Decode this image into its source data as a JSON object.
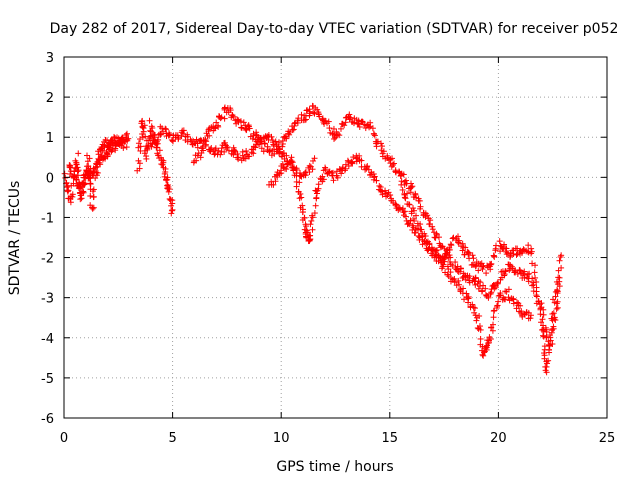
{
  "chart_data": {
    "type": "scatter",
    "title": "Day 282 of 2017, Sidereal Day-to-day VTEC variation (SDTVAR) for receiver p052",
    "xlabel": "GPS time / hours",
    "ylabel": "SDTVAR / TECUs",
    "xlim": [
      0,
      25
    ],
    "ylim": [
      -6,
      3
    ],
    "xticks": [
      0,
      5,
      10,
      15,
      20,
      25
    ],
    "yticks": [
      -6,
      -5,
      -4,
      -3,
      -2,
      -1,
      0,
      1,
      2,
      3
    ],
    "grid": true,
    "marker": "+",
    "series": [
      {
        "name": "SDTVAR",
        "color": "#ff0000",
        "tracks": [
          [
            [
              0.1,
              0.0
            ],
            [
              0.3,
              -0.6
            ],
            [
              0.6,
              0.5
            ],
            [
              0.8,
              -0.5
            ],
            [
              1.1,
              0.5
            ],
            [
              1.3,
              -0.8
            ],
            [
              1.6,
              0.6
            ],
            [
              1.9,
              0.8
            ],
            [
              2.2,
              0.9
            ],
            [
              2.6,
              0.9
            ],
            [
              2.9,
              0.8
            ]
          ],
          [
            [
              0.2,
              0.3
            ],
            [
              0.5,
              0.0
            ],
            [
              0.8,
              -0.4
            ],
            [
              1.0,
              0.1
            ],
            [
              1.2,
              0.0
            ],
            [
              1.5,
              0.3
            ],
            [
              1.8,
              0.5
            ],
            [
              2.1,
              0.7
            ],
            [
              2.5,
              0.8
            ],
            [
              2.9,
              1.0
            ]
          ],
          [
            [
              3.4,
              0.1
            ],
            [
              3.6,
              1.5
            ],
            [
              3.8,
              0.5
            ],
            [
              4.0,
              1.3
            ],
            [
              4.3,
              0.7
            ],
            [
              4.6,
              0.3
            ],
            [
              4.8,
              -0.3
            ],
            [
              5.0,
              -0.8
            ]
          ],
          [
            [
              4.0,
              0.8
            ],
            [
              4.5,
              1.2
            ],
            [
              5.0,
              1.0
            ],
            [
              5.5,
              1.1
            ],
            [
              6.0,
              0.8
            ],
            [
              6.5,
              1.0
            ],
            [
              7.0,
              1.3
            ],
            [
              7.5,
              1.7
            ],
            [
              8.0,
              1.4
            ],
            [
              8.5,
              1.2
            ],
            [
              9.0,
              0.9
            ],
            [
              9.5,
              0.6
            ],
            [
              10.0,
              0.8
            ],
            [
              10.5,
              1.2
            ],
            [
              11.0,
              1.5
            ],
            [
              11.5,
              1.7
            ],
            [
              12.0,
              1.4
            ],
            [
              12.5,
              1.0
            ],
            [
              13.0,
              1.5
            ],
            [
              13.5,
              1.4
            ],
            [
              14.0,
              1.3
            ],
            [
              14.5,
              0.8
            ],
            [
              15.0,
              0.4
            ],
            [
              15.5,
              0.1
            ],
            [
              16.0,
              -0.3
            ],
            [
              16.5,
              -0.8
            ],
            [
              17.0,
              -1.3
            ],
            [
              17.5,
              -1.8
            ],
            [
              18.0,
              -2.2
            ],
            [
              18.5,
              -2.5
            ],
            [
              19.0,
              -2.6
            ],
            [
              19.5,
              -2.9
            ],
            [
              20.0,
              -2.6
            ],
            [
              20.5,
              -2.2
            ],
            [
              21.0,
              -2.4
            ],
            [
              21.5,
              -2.5
            ],
            [
              22.0,
              -3.3
            ],
            [
              22.3,
              -4.2
            ],
            [
              22.6,
              -3.0
            ],
            [
              22.9,
              -2.0
            ]
          ],
          [
            [
              6.0,
              0.4
            ],
            [
              6.5,
              0.8
            ],
            [
              7.0,
              0.6
            ],
            [
              7.5,
              0.8
            ],
            [
              8.0,
              0.5
            ],
            [
              8.5,
              0.6
            ],
            [
              9.0,
              0.9
            ],
            [
              9.5,
              1.0
            ],
            [
              10.0,
              0.6
            ],
            [
              10.5,
              0.3
            ],
            [
              11.0,
              0.0
            ],
            [
              11.5,
              0.4
            ]
          ],
          [
            [
              9.5,
              -0.2
            ],
            [
              10.0,
              0.2
            ],
            [
              10.5,
              0.4
            ],
            [
              10.9,
              -0.5
            ],
            [
              11.1,
              -1.3
            ],
            [
              11.3,
              -1.6
            ],
            [
              11.6,
              -0.4
            ],
            [
              12.0,
              0.2
            ],
            [
              12.5,
              0.0
            ],
            [
              13.0,
              0.3
            ],
            [
              13.5,
              0.5
            ],
            [
              14.0,
              0.2
            ],
            [
              14.5,
              -0.2
            ],
            [
              15.0,
              -0.5
            ],
            [
              15.5,
              -0.8
            ],
            [
              16.0,
              -1.2
            ],
            [
              16.5,
              -1.6
            ],
            [
              17.0,
              -1.9
            ],
            [
              17.5,
              -2.2
            ],
            [
              18.0,
              -2.6
            ],
            [
              18.5,
              -3.0
            ],
            [
              19.0,
              -3.4
            ],
            [
              19.3,
              -4.4
            ],
            [
              19.6,
              -4.0
            ],
            [
              20.0,
              -3.0
            ],
            [
              20.5,
              -2.9
            ],
            [
              21.0,
              -3.3
            ],
            [
              21.5,
              -3.5
            ]
          ],
          [
            [
              15.5,
              -0.2
            ],
            [
              16.0,
              -0.8
            ],
            [
              16.5,
              -1.4
            ],
            [
              17.0,
              -1.8
            ],
            [
              17.5,
              -2.0
            ],
            [
              18.0,
              -1.5
            ],
            [
              18.5,
              -1.9
            ],
            [
              19.0,
              -2.2
            ],
            [
              19.5,
              -2.3
            ],
            [
              20.0,
              -1.7
            ],
            [
              20.5,
              -1.9
            ],
            [
              21.0,
              -1.8
            ],
            [
              21.5,
              -1.8
            ],
            [
              22.0,
              -3.6
            ],
            [
              22.2,
              -4.9
            ],
            [
              22.5,
              -3.8
            ],
            [
              22.8,
              -2.7
            ]
          ]
        ]
      }
    ]
  }
}
